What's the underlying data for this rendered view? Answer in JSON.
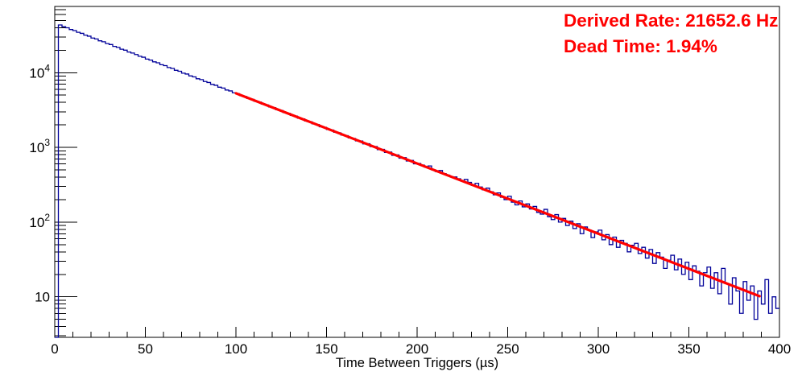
{
  "chart_data": {
    "type": "histogram",
    "title": "",
    "xlabel": "Time Between Triggers (µs)",
    "ylabel": "",
    "x_range": [
      0,
      400
    ],
    "bin_width_us": 2,
    "y_scale": "log",
    "y_range": [
      2.87,
      77000
    ],
    "grid": false,
    "frame_color": "#000000",
    "x_major_ticks": [
      0,
      50,
      100,
      150,
      200,
      250,
      300,
      350,
      400
    ],
    "x_minor_step": 10,
    "y_major_ticks": [
      {
        "value": 10,
        "label": "10"
      },
      {
        "value": 100,
        "label": "10^2"
      },
      {
        "value": 1000,
        "label": "10^3"
      },
      {
        "value": 10000,
        "label": "10^4"
      }
    ],
    "series": [
      {
        "name": "time-between-triggers-histogram",
        "color": "#000099",
        "bins": [
          0,
          43500,
          41200,
          39900,
          37800,
          36600,
          34700,
          33600,
          31800,
          30800,
          29100,
          28300,
          26700,
          25900,
          24500,
          23800,
          22500,
          21800,
          20600,
          20000,
          18900,
          18300,
          17500,
          16600,
          16100,
          15200,
          14750,
          13960,
          13560,
          12790,
          12430,
          11730,
          11400,
          10760,
          10450,
          9860,
          9590,
          9050,
          8790,
          8290,
          8070,
          7610,
          7390,
          6970,
          6780,
          6390,
          6220,
          5860,
          5700,
          5380,
          5230,
          4930,
          4800,
          4520,
          4400,
          4140,
          4040,
          3800,
          3700,
          3480,
          3400,
          3190,
          3115,
          2925,
          2860,
          2680,
          2620,
          2460,
          2405,
          2255,
          2205,
          2065,
          2025,
          1890,
          1857,
          1735,
          1705,
          1590,
          1565,
          1458,
          1435,
          1336,
          1317,
          1224,
          1219,
          1114,
          1119,
          1023,
          1027,
          934,
          942,
          856,
          865,
          783,
          794,
          717,
          729,
          657,
          669,
          602,
          610,
          580,
          545,
          565,
          500,
          475,
          490,
          445,
          425,
          405,
          402,
          380,
          355,
          372,
          340,
          310,
          330,
          295,
          270,
          285,
          255,
          232,
          246,
          215,
          200,
          222,
          185,
          170,
          192,
          160,
          175,
          150,
          162,
          135,
          128,
          148,
          118,
          108,
          126,
          100,
          112,
          90,
          103,
          82,
          95,
          70,
          86,
          78,
          62,
          74,
          78,
          58,
          68,
          50,
          63,
          46,
          57,
          52,
          40,
          49,
          52,
          38,
          46,
          33,
          43,
          28,
          39,
          34,
          24,
          31,
          36,
          23,
          32,
          20,
          29,
          17,
          26,
          22,
          14,
          21,
          25,
          13,
          21,
          11,
          24,
          15,
          8,
          18,
          12,
          6,
          16,
          9,
          14,
          5,
          12,
          8,
          17,
          6,
          10,
          7
        ]
      }
    ],
    "fit": {
      "name": "exponential-fit",
      "color": "#ff0000",
      "x_start": 100,
      "x_end": 389,
      "value_start": 5300,
      "value_end": 10.2
    },
    "annotations": [
      {
        "text": "Derived Rate: 21652.6 Hz",
        "color": "#ff0000"
      },
      {
        "text": "Dead Time: 1.94%",
        "color": "#ff0000"
      }
    ]
  }
}
